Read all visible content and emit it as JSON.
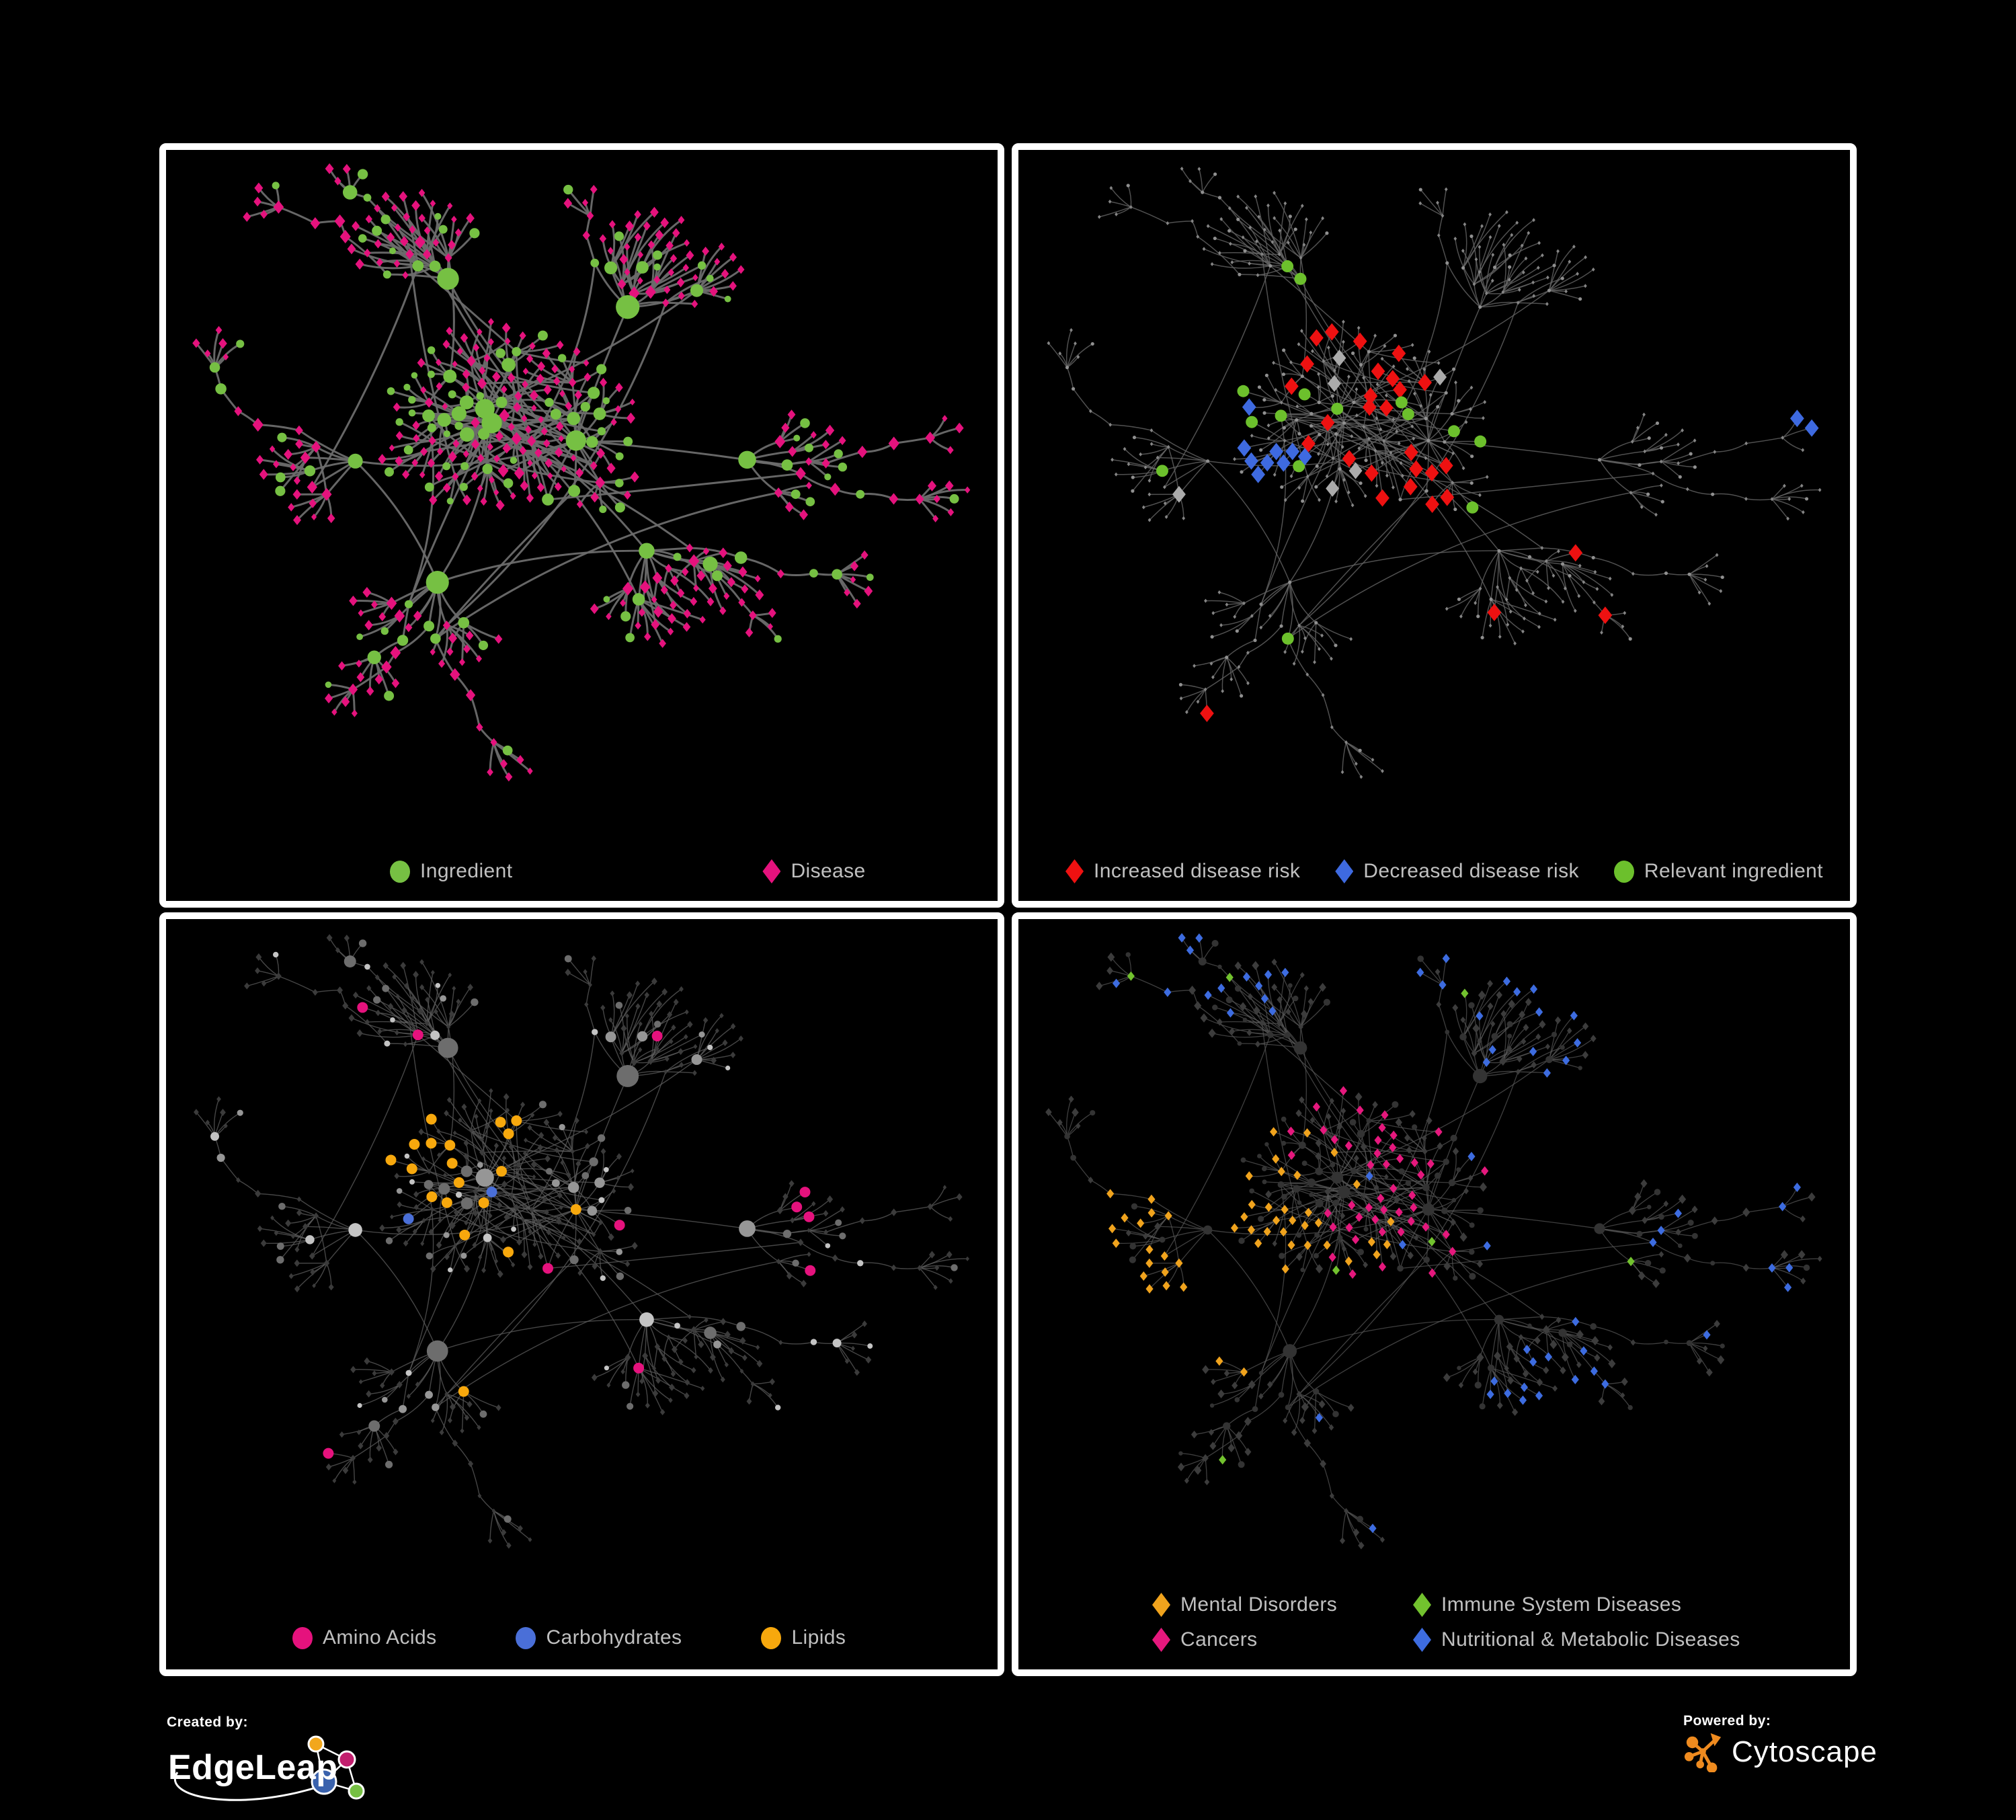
{
  "figure": {
    "background": "#000000",
    "panel_border": "#ffffff"
  },
  "panels": [
    {
      "name": "ingredient-disease-network",
      "legend": [
        {
          "shape": "circle",
          "color": "#76c043",
          "label": "Ingredient"
        },
        {
          "shape": "diamond",
          "color": "#e5127d",
          "label": "Disease"
        }
      ]
    },
    {
      "name": "disease-risk-network",
      "legend": [
        {
          "shape": "diamond",
          "color": "#ee1111",
          "label": "Increased disease risk"
        },
        {
          "shape": "diamond",
          "color": "#3e6ae0",
          "label": "Decreased disease risk"
        },
        {
          "shape": "circle",
          "color": "#6cc02c",
          "label": "Relevant ingredient"
        }
      ]
    },
    {
      "name": "chemical-class-network",
      "legend": [
        {
          "shape": "circle",
          "color": "#e5127d",
          "label": "Amino Acids"
        },
        {
          "shape": "circle",
          "color": "#4a6fd8",
          "label": "Carbohydrates"
        },
        {
          "shape": "circle",
          "color": "#f7a80d",
          "label": "Lipids"
        }
      ]
    },
    {
      "name": "disease-class-network",
      "legend": [
        {
          "shape": "diamond",
          "color": "#f0a31d",
          "label": "Mental Disorders"
        },
        {
          "shape": "diamond",
          "color": "#72c22e",
          "label": "Immune System Diseases"
        },
        {
          "shape": "diamond",
          "color": "#e5187d",
          "label": "Cancers"
        },
        {
          "shape": "diamond",
          "color": "#3d6ce0",
          "label": "Nutritional & Metabolic Diseases"
        }
      ]
    }
  ],
  "footer": {
    "created_by": {
      "label": "Created by:",
      "brand": "EdgeLeap"
    },
    "powered_by": {
      "label": "Powered by:",
      "brand": "Cytoscape"
    }
  },
  "logo_colors": {
    "edgeleap_nodes": [
      "#f2a71c",
      "#c21f6e",
      "#3a62ad",
      "#76c043"
    ],
    "cytoscape": "#ef8b1f"
  },
  "network": {
    "seed": 11,
    "core_hubs": 3,
    "outer_hubs": 6,
    "approx_nodes": 400,
    "cross_links": 22,
    "styles": {
      "p1": {
        "edge": "#6c6c6c",
        "ew": 3.0,
        "eo": 0.95,
        "ingredient": "#76c043",
        "disease": "#e5127d"
      },
      "p2": {
        "edge": "#646464",
        "ew": 1.5,
        "eo": 0.8,
        "base_ingredient": "#909090",
        "base_disease": "#858585",
        "red": "#ee1111",
        "blue": "#3e6ae0",
        "gray": "#ababab",
        "green": "#6cc02c"
      },
      "p3": {
        "edge": "#5e5e5e",
        "ew": 1.4,
        "eo": 0.75,
        "disease": "#3b3b3b",
        "ingredient_shades": [
          "#c4c4c4",
          "#969696",
          "#6d6d6d"
        ],
        "amino": "#e5127d",
        "carb": "#4a6fd8",
        "lipid": "#f7a80d"
      },
      "p4": {
        "edge": "#5a5a5a",
        "ew": 1.3,
        "eo": 0.7,
        "ingredient": "#333333",
        "disease": "#3c3c3c",
        "mental": "#f0a31d",
        "immune": "#72c22e",
        "cancer": "#e5187d",
        "nutri": "#3d6ce0"
      }
    }
  }
}
